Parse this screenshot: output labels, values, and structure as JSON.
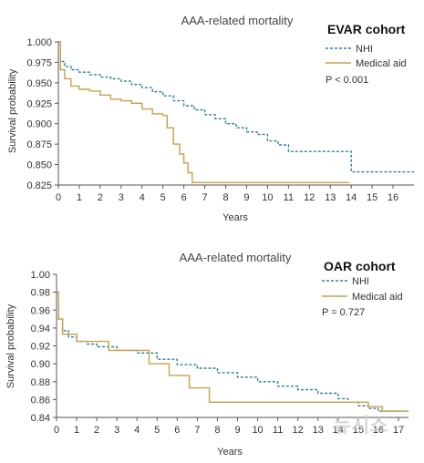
{
  "colors": {
    "nhi": "#2f7f9a",
    "medical_aid": "#c9a04a",
    "axis": "#555555"
  },
  "chart_data": [
    {
      "type": "line",
      "title": "AAA-related mortality",
      "cohort": "EVAR cohort",
      "xlabel": "Years",
      "ylabel": "Survival probability",
      "xlim": [
        0,
        17
      ],
      "ylim": [
        0.825,
        1.0
      ],
      "xticks": [
        "0",
        "1",
        "2",
        "3",
        "4",
        "5",
        "6",
        "7",
        "8",
        "9",
        "10",
        "11",
        "12",
        "13",
        "14",
        "15",
        "16"
      ],
      "yticks": [
        "1.000",
        "0.975",
        "0.950",
        "0.925",
        "0.900",
        "0.875",
        "0.850",
        "0.825"
      ],
      "grid": false,
      "legend_position": "top-right",
      "pvalue": "P < 0.001",
      "series": [
        {
          "name": "NHI",
          "style": "dashed",
          "x": [
            0,
            0.1,
            0.3,
            0.6,
            1,
            1.5,
            2,
            2.5,
            3,
            3.5,
            4,
            4.5,
            5,
            5.5,
            6,
            6.5,
            7,
            7.5,
            8,
            8.5,
            9,
            9.5,
            10,
            10.5,
            11,
            12,
            13,
            13.9,
            14.0,
            14.5,
            15,
            16,
            17
          ],
          "y": [
            1.0,
            0.976,
            0.97,
            0.966,
            0.963,
            0.96,
            0.957,
            0.955,
            0.952,
            0.948,
            0.944,
            0.939,
            0.934,
            0.928,
            0.922,
            0.917,
            0.911,
            0.906,
            0.9,
            0.895,
            0.89,
            0.887,
            0.879,
            0.874,
            0.866,
            0.866,
            0.866,
            0.866,
            0.841,
            0.841,
            0.841,
            0.841,
            0.841
          ]
        },
        {
          "name": "Medical aid",
          "style": "solid",
          "x": [
            0,
            0.1,
            0.3,
            0.6,
            1,
            1.5,
            2,
            2.5,
            3,
            3.5,
            4,
            4.5,
            5,
            5.2,
            5.5,
            5.8,
            6,
            6.2,
            6.4,
            7,
            8,
            9,
            10,
            11,
            12,
            13,
            13.9
          ],
          "y": [
            1.0,
            0.966,
            0.955,
            0.946,
            0.942,
            0.94,
            0.935,
            0.93,
            0.928,
            0.925,
            0.918,
            0.912,
            0.91,
            0.895,
            0.875,
            0.863,
            0.852,
            0.84,
            0.828,
            0.828,
            0.828,
            0.828,
            0.828,
            0.828,
            0.828,
            0.828,
            0.828
          ]
        }
      ]
    },
    {
      "type": "line",
      "title": "AAA-related mortality",
      "cohort": "OAR cohort",
      "xlabel": "Years",
      "ylabel": "Survival probability",
      "xlim": [
        0,
        17.5
      ],
      "ylim": [
        0.84,
        1.0
      ],
      "xticks": [
        "0",
        "1",
        "2",
        "3",
        "4",
        "5",
        "6",
        "7",
        "8",
        "9",
        "10",
        "11",
        "12",
        "13",
        "14",
        "15",
        "16",
        "17"
      ],
      "yticks": [
        "1.00",
        "0.98",
        "0.96",
        "0.94",
        "0.92",
        "0.90",
        "0.88",
        "0.86",
        "0.84"
      ],
      "grid": false,
      "legend_position": "top-right",
      "pvalue": "P = 0.727",
      "series": [
        {
          "name": "NHI",
          "style": "dashed",
          "x": [
            0,
            0.1,
            0.3,
            0.6,
            1,
            1.5,
            2,
            3,
            4,
            5,
            6,
            7,
            8,
            9,
            10,
            11,
            12,
            13,
            14,
            14.5,
            15,
            15.5,
            16,
            17,
            17.5
          ],
          "y": [
            0.98,
            0.95,
            0.937,
            0.93,
            0.925,
            0.922,
            0.919,
            0.915,
            0.912,
            0.905,
            0.899,
            0.895,
            0.89,
            0.885,
            0.88,
            0.875,
            0.871,
            0.867,
            0.861,
            0.857,
            0.853,
            0.85,
            0.847,
            0.847,
            0.847
          ]
        },
        {
          "name": "Medical aid",
          "style": "solid",
          "x": [
            0,
            0.1,
            0.3,
            0.8,
            1,
            2.5,
            2.6,
            4.5,
            4.6,
            5.5,
            5.6,
            6.5,
            6.6,
            7.5,
            7.6,
            10,
            12,
            14,
            15.4,
            15.5,
            16.2,
            17.5
          ],
          "y": [
            0.98,
            0.95,
            0.933,
            0.933,
            0.925,
            0.925,
            0.915,
            0.915,
            0.9,
            0.9,
            0.887,
            0.887,
            0.873,
            0.873,
            0.857,
            0.857,
            0.857,
            0.857,
            0.857,
            0.852,
            0.847,
            0.847
          ]
        }
      ]
    }
  ],
  "watermark": "뉴시스"
}
